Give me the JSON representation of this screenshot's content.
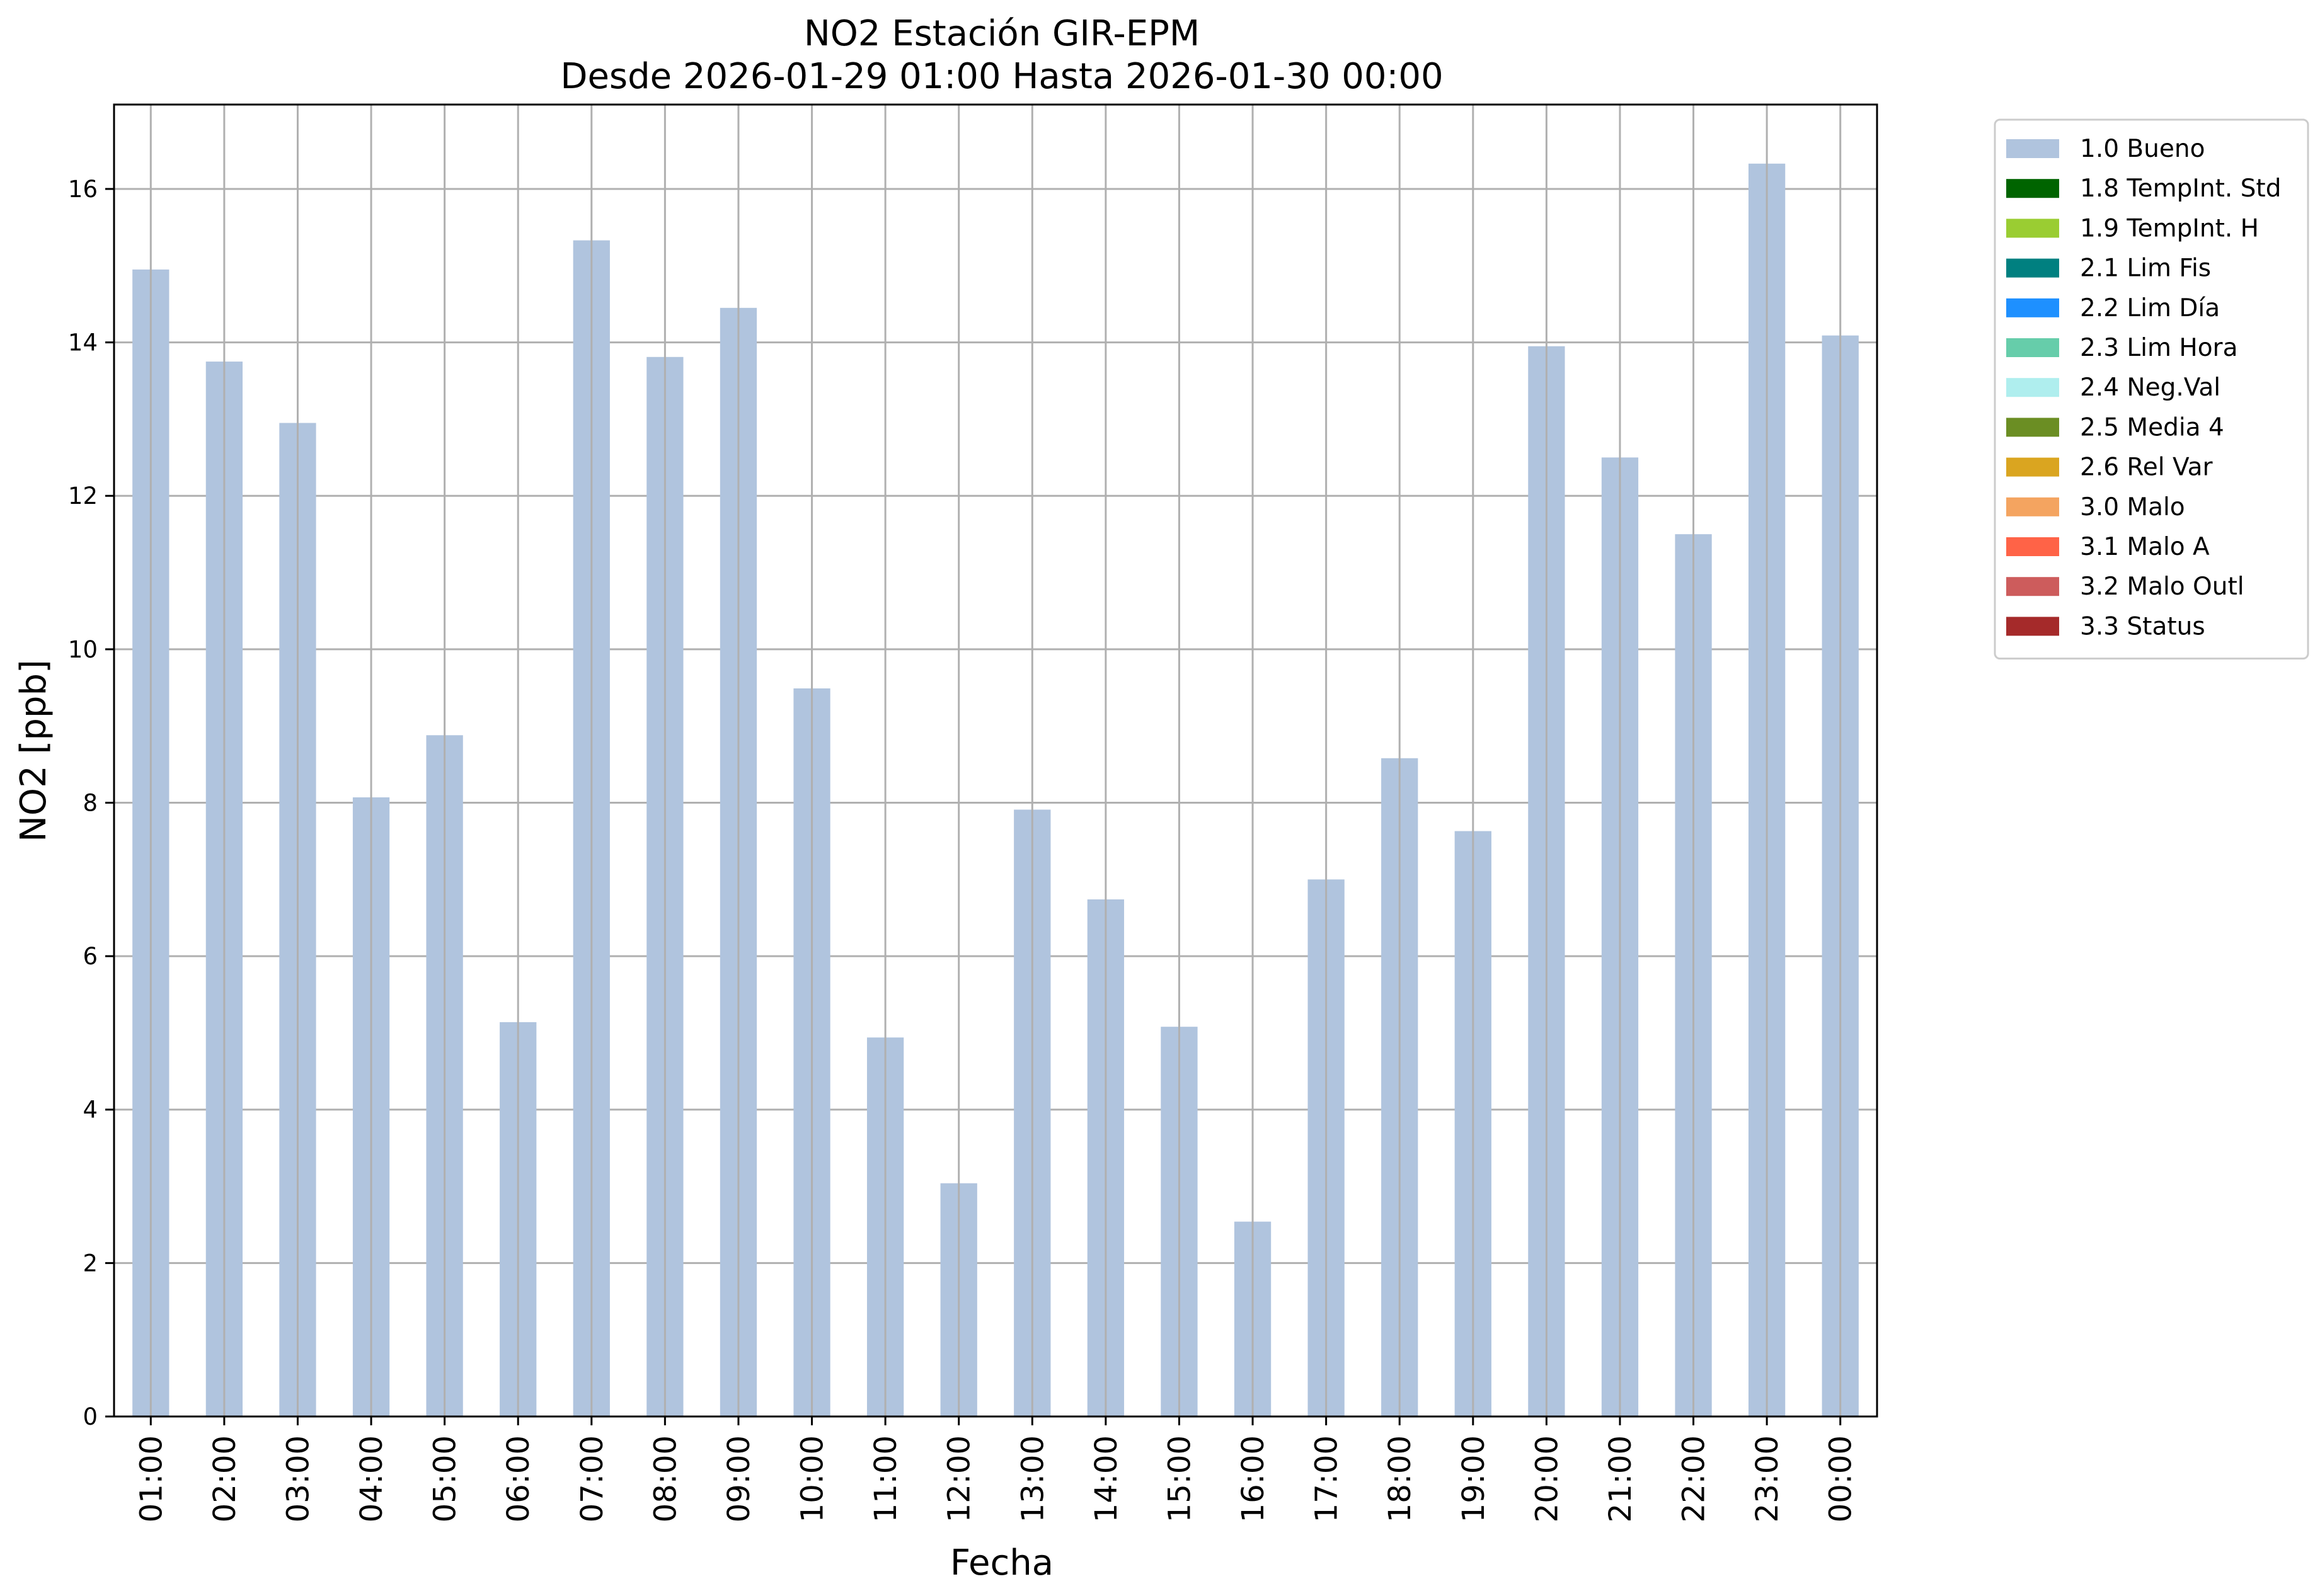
{
  "chart_data": {
    "type": "bar",
    "title": "NO2 Estación GIR-EPM",
    "subtitle": "Desde 2026-01-29 01:00 Hasta 2026-01-30 00:00",
    "xlabel": "Fecha",
    "ylabel": "NO2 [ppb]",
    "ylim": [
      0,
      17.1
    ],
    "yticks": [
      0,
      2,
      4,
      6,
      8,
      10,
      12,
      14,
      16
    ],
    "grid": true,
    "legend_position": "outside-top-right",
    "categories": [
      "01:00",
      "02:00",
      "03:00",
      "04:00",
      "05:00",
      "06:00",
      "07:00",
      "08:00",
      "09:00",
      "10:00",
      "11:00",
      "12:00",
      "13:00",
      "14:00",
      "15:00",
      "16:00",
      "17:00",
      "18:00",
      "19:00",
      "20:00",
      "21:00",
      "22:00",
      "23:00",
      "00:00"
    ],
    "series": [
      {
        "name": "1.0 Bueno",
        "color": "#b0c4de",
        "values": [
          14.95,
          13.75,
          12.95,
          8.07,
          8.88,
          5.14,
          15.33,
          13.81,
          14.45,
          9.49,
          4.94,
          3.04,
          7.91,
          6.74,
          5.08,
          2.54,
          7.0,
          8.58,
          7.63,
          13.95,
          12.5,
          11.5,
          16.33,
          14.09
        ]
      }
    ],
    "legend": [
      {
        "label": "1.0 Bueno",
        "color": "#b0c4de"
      },
      {
        "label": "1.8 TempInt. Std",
        "color": "#006400"
      },
      {
        "label": "1.9 TempInt. H",
        "color": "#9acd32"
      },
      {
        "label": "2.1 Lim Fis",
        "color": "#008080"
      },
      {
        "label": "2.2 Lim Día",
        "color": "#1e90ff"
      },
      {
        "label": "2.3 Lim Hora",
        "color": "#66cdaa"
      },
      {
        "label": "2.4 Neg.Val",
        "color": "#afeeee"
      },
      {
        "label": "2.5 Media 4",
        "color": "#6b8e23"
      },
      {
        "label": "2.6 Rel Var",
        "color": "#daa520"
      },
      {
        "label": "3.0 Malo",
        "color": "#f4a460"
      },
      {
        "label": "3.1 Malo A",
        "color": "#ff6347"
      },
      {
        "label": "3.2 Malo Outl",
        "color": "#cd5c5c"
      },
      {
        "label": "3.3 Status",
        "color": "#a52a2a"
      }
    ]
  }
}
